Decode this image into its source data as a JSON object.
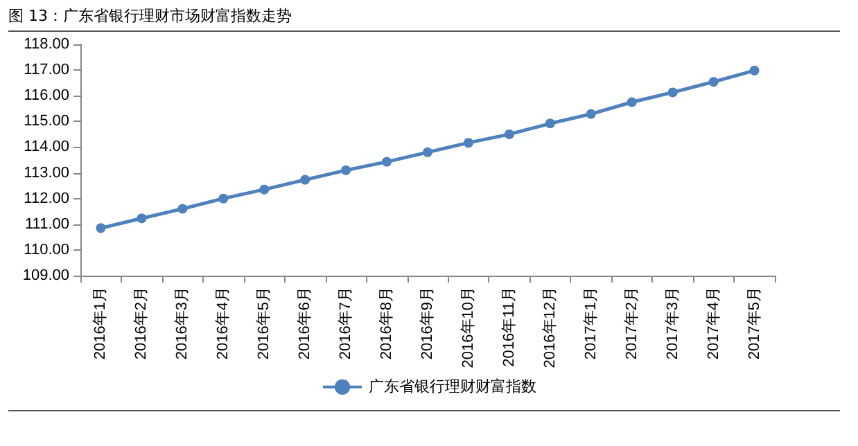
{
  "chart_data": {
    "type": "line",
    "title": "图 13：广东省银行理财市场财富指数走势",
    "categories": [
      "2016年1月",
      "2016年2月",
      "2016年3月",
      "2016年4月",
      "2016年5月",
      "2016年6月",
      "2016年7月",
      "2016年8月",
      "2016年9月",
      "2016年10月",
      "2016年11月",
      "2016年12月",
      "2017年1月",
      "2017年2月",
      "2017年3月",
      "2017年4月",
      "2017年5月"
    ],
    "series": [
      {
        "name": "广东省银行理财财富指数",
        "color": "#4f81bd",
        "values": [
          110.85,
          111.23,
          111.6,
          112.0,
          112.35,
          112.73,
          113.1,
          113.43,
          113.8,
          114.17,
          114.5,
          114.92,
          115.29,
          115.75,
          116.13,
          116.54,
          116.98
        ]
      }
    ],
    "ylim": [
      109,
      118
    ],
    "yticks": [
      {
        "value": 109,
        "label": "109.00"
      },
      {
        "value": 110,
        "label": "110.00"
      },
      {
        "value": 111,
        "label": "111.00"
      },
      {
        "value": 112,
        "label": "112.00"
      },
      {
        "value": 113,
        "label": "113.00"
      },
      {
        "value": 114,
        "label": "114.00"
      },
      {
        "value": 115,
        "label": "115.00"
      },
      {
        "value": 116,
        "label": "116.00"
      },
      {
        "value": 117,
        "label": "117.00"
      },
      {
        "value": 118,
        "label": "118.00"
      }
    ],
    "grid": false,
    "legend": "bottom",
    "marker": "circle",
    "line_style": "solid"
  }
}
